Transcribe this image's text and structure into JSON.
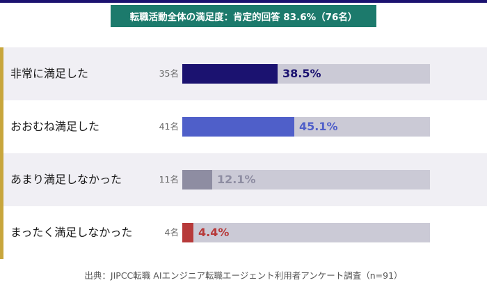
{
  "chart_data": {
    "type": "bar",
    "orientation": "horizontal",
    "title": "転職活動全体の満足度：肯定的回答 83.6%（76名）",
    "categories": [
      "非常に満足した",
      "おおむね満足した",
      "あまり満足しなかった",
      "まったく満足しなかった"
    ],
    "counts": [
      "35名",
      "41名",
      "11名",
      "4名"
    ],
    "values": [
      38.5,
      45.1,
      12.1,
      4.4
    ],
    "value_labels": [
      "38.5%",
      "45.1%",
      "12.1%",
      "4.4%"
    ],
    "bar_colors": [
      "#1b1270",
      "#4f5fc9",
      "#8e8da2",
      "#b73a3a"
    ],
    "label_colors": [
      "#1b1270",
      "#4f5fc9",
      "#8e8da2",
      "#b73a3a"
    ],
    "track_color": "#cbcad6",
    "xlim": [
      0,
      100
    ],
    "source": "出典：JIPCC転職 AIエンジニア転職エージェント利用者アンケート調査（n=91）"
  }
}
